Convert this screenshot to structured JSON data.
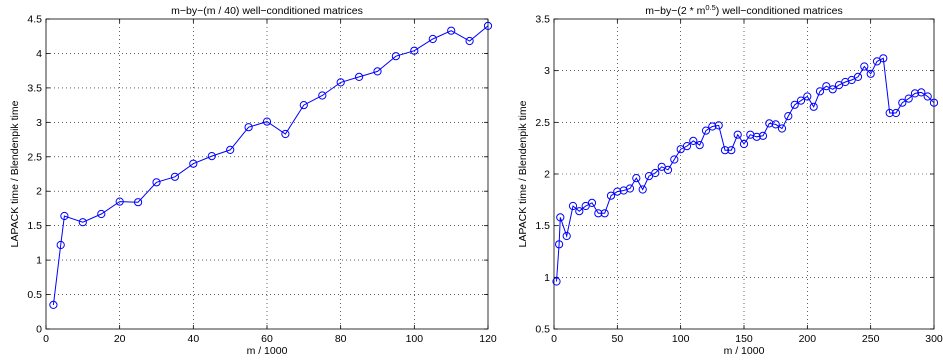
{
  "chart_data": [
    {
      "type": "line",
      "title": "m−by−(m / 40) well−conditioned matrices",
      "xlabel": "m / 1000",
      "ylabel": "LAPACK time / Blendenpik time",
      "xlim": [
        0,
        120
      ],
      "ylim": [
        0,
        4.5
      ],
      "xticks": [
        0,
        20,
        40,
        60,
        80,
        100,
        120
      ],
      "yticks": [
        0,
        0.5,
        1,
        1.5,
        2,
        2.5,
        3,
        3.5,
        4,
        4.5
      ],
      "xtick_labels": [
        "0",
        "20",
        "40",
        "60",
        "80",
        "100",
        "120"
      ],
      "ytick_labels": [
        "0",
        "0.5",
        "1",
        "1.5",
        "2",
        "2.5",
        "3",
        "3.5",
        "4",
        "4.5"
      ],
      "grid": "dotted",
      "line_color": "#0000ff",
      "marker": "circle",
      "x": [
        2,
        4,
        5,
        10,
        15,
        20,
        25,
        30,
        35,
        40,
        45,
        50,
        55,
        60,
        65,
        70,
        75,
        80,
        85,
        90,
        95,
        100,
        105,
        110,
        115,
        120
      ],
      "y": [
        0.35,
        1.22,
        1.64,
        1.55,
        1.67,
        1.85,
        1.84,
        2.13,
        2.21,
        2.4,
        2.51,
        2.6,
        2.93,
        3.01,
        2.83,
        3.25,
        3.39,
        3.58,
        3.66,
        3.74,
        3.96,
        4.04,
        4.21,
        4.33,
        4.18,
        4.4
      ]
    },
    {
      "type": "line",
      "title_pre": "m−by−(2 * m",
      "title_sup": "0.5",
      "title_post": ") well−conditioned matrices",
      "xlabel": "m / 1000",
      "ylabel": "LAPACK time / Blendenpik time",
      "xlim": [
        0,
        300
      ],
      "ylim": [
        0.5,
        3.5
      ],
      "xticks": [
        0,
        50,
        100,
        150,
        200,
        250,
        300
      ],
      "yticks": [
        0.5,
        1,
        1.5,
        2,
        2.5,
        3,
        3.5
      ],
      "xtick_labels": [
        "0",
        "50",
        "100",
        "150",
        "200",
        "250",
        "300"
      ],
      "ytick_labels": [
        "0.5",
        "1",
        "1.5",
        "2",
        "2.5",
        "3",
        "3.5"
      ],
      "grid": "dotted",
      "line_color": "#0000ff",
      "marker": "circle",
      "x": [
        2,
        4,
        5,
        10,
        15,
        20,
        25,
        30,
        35,
        40,
        45,
        50,
        55,
        60,
        65,
        70,
        75,
        80,
        85,
        90,
        95,
        100,
        105,
        110,
        115,
        120,
        125,
        130,
        135,
        140,
        145,
        150,
        155,
        160,
        165,
        170,
        175,
        180,
        185,
        190,
        195,
        200,
        205,
        210,
        215,
        220,
        225,
        230,
        235,
        240,
        245,
        250,
        255,
        260,
        265,
        270,
        275,
        280,
        285,
        290,
        295,
        300
      ],
      "y": [
        0.96,
        1.32,
        1.58,
        1.4,
        1.69,
        1.64,
        1.69,
        1.72,
        1.62,
        1.62,
        1.79,
        1.83,
        1.84,
        1.86,
        1.96,
        1.85,
        1.98,
        2.01,
        2.07,
        2.04,
        2.14,
        2.24,
        2.27,
        2.32,
        2.28,
        2.42,
        2.46,
        2.47,
        2.23,
        2.23,
        2.38,
        2.29,
        2.38,
        2.36,
        2.37,
        2.49,
        2.48,
        2.44,
        2.56,
        2.67,
        2.71,
        2.75,
        2.65,
        2.8,
        2.85,
        2.82,
        2.86,
        2.89,
        2.91,
        2.94,
        3.04,
        2.97,
        3.09,
        3.12,
        2.59,
        2.59,
        2.69,
        2.73,
        2.78,
        2.79,
        2.75,
        2.69
      ]
    }
  ]
}
